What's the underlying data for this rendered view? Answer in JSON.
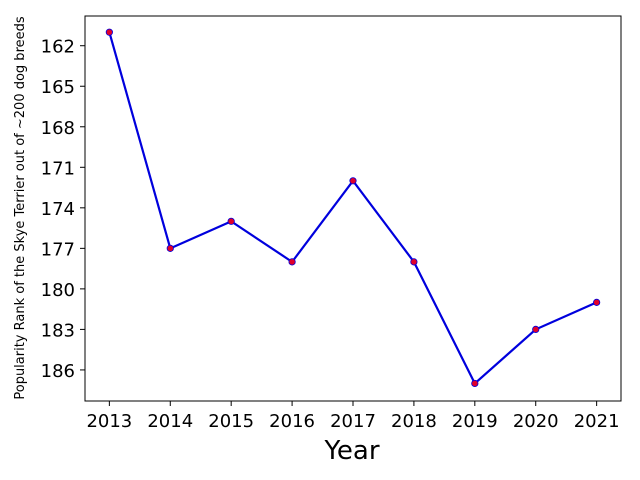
{
  "chart_data": {
    "type": "line",
    "x": [
      2013,
      2014,
      2015,
      2016,
      2017,
      2018,
      2019,
      2020,
      2021
    ],
    "series": [
      {
        "name": "Popularity Rank",
        "color": "#0000dd",
        "marker_color": "#e0002a",
        "values": [
          161,
          177,
          175,
          178,
          172,
          178,
          187,
          183,
          181
        ]
      }
    ],
    "x_label": "Year",
    "y_label": "Popularity Rank of the Skye Terrier out of ~200 dog breeds",
    "xlim": [
      2012.6,
      2021.4
    ],
    "xticks": [
      2013,
      2014,
      2015,
      2016,
      2017,
      2018,
      2019,
      2020,
      2021
    ],
    "ylim": [
      188.3,
      159.8
    ],
    "yticks": [
      162,
      165,
      168,
      171,
      174,
      177,
      180,
      183,
      186
    ],
    "grid": false
  }
}
